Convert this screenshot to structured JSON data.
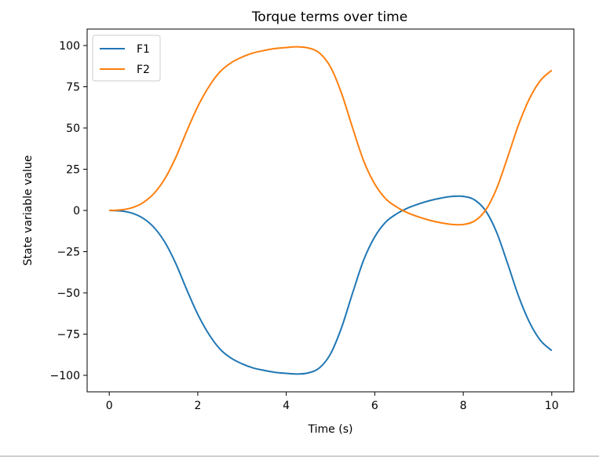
{
  "chart_data": {
    "type": "line",
    "title": "Torque terms over time",
    "xlabel": "Time (s)",
    "ylabel": "State variable value",
    "xlim": [
      -0.5,
      10.5
    ],
    "ylim": [
      -110,
      110
    ],
    "xticks": [
      0,
      2,
      4,
      6,
      8,
      10
    ],
    "xtick_labels": [
      "0",
      "2",
      "4",
      "6",
      "8",
      "10"
    ],
    "yticks": [
      100,
      75,
      50,
      25,
      0,
      -25,
      -50,
      -75,
      -100
    ],
    "ytick_labels": [
      "100",
      "75",
      "50",
      "25",
      "0",
      "−25",
      "−50",
      "−75",
      "−100"
    ],
    "grid": false,
    "legend_position": "top-left",
    "x": [
      0,
      0.25,
      0.5,
      0.75,
      1,
      1.25,
      1.5,
      1.75,
      2,
      2.25,
      2.5,
      2.75,
      3,
      3.25,
      3.5,
      3.75,
      4,
      4.25,
      4.5,
      4.75,
      5,
      5.25,
      5.5,
      5.75,
      6,
      6.25,
      6.5,
      6.75,
      7,
      7.25,
      7.5,
      7.75,
      8,
      8.25,
      8.5,
      8.75,
      9,
      9.25,
      9.5,
      9.75,
      10
    ],
    "series": [
      {
        "name": "F1",
        "color": "#1f77b4",
        "values": [
          0,
          -0.3,
          -1.5,
          -4.5,
          -10,
          -19,
          -32,
          -48,
          -63,
          -75,
          -84,
          -89.5,
          -93,
          -95.5,
          -97,
          -98.2,
          -98.8,
          -99.2,
          -98.5,
          -95.5,
          -87,
          -71,
          -50,
          -30,
          -16,
          -7,
          -2,
          1.5,
          4,
          6,
          7.5,
          8.5,
          8.5,
          6.5,
          0,
          -13,
          -32,
          -52,
          -68,
          -79,
          -85
        ]
      },
      {
        "name": "F2",
        "color": "#ff7f0e",
        "values": [
          0,
          0.3,
          1.5,
          4.5,
          10,
          19,
          32,
          48,
          63,
          75,
          84,
          89.5,
          93,
          95.5,
          97,
          98.2,
          98.8,
          99.2,
          98.5,
          95.5,
          87,
          71,
          50,
          30,
          16,
          7,
          2,
          -1.5,
          -4,
          -6,
          -7.5,
          -8.5,
          -8.5,
          -6.5,
          0,
          13,
          32,
          52,
          68,
          79,
          85
        ]
      }
    ]
  }
}
